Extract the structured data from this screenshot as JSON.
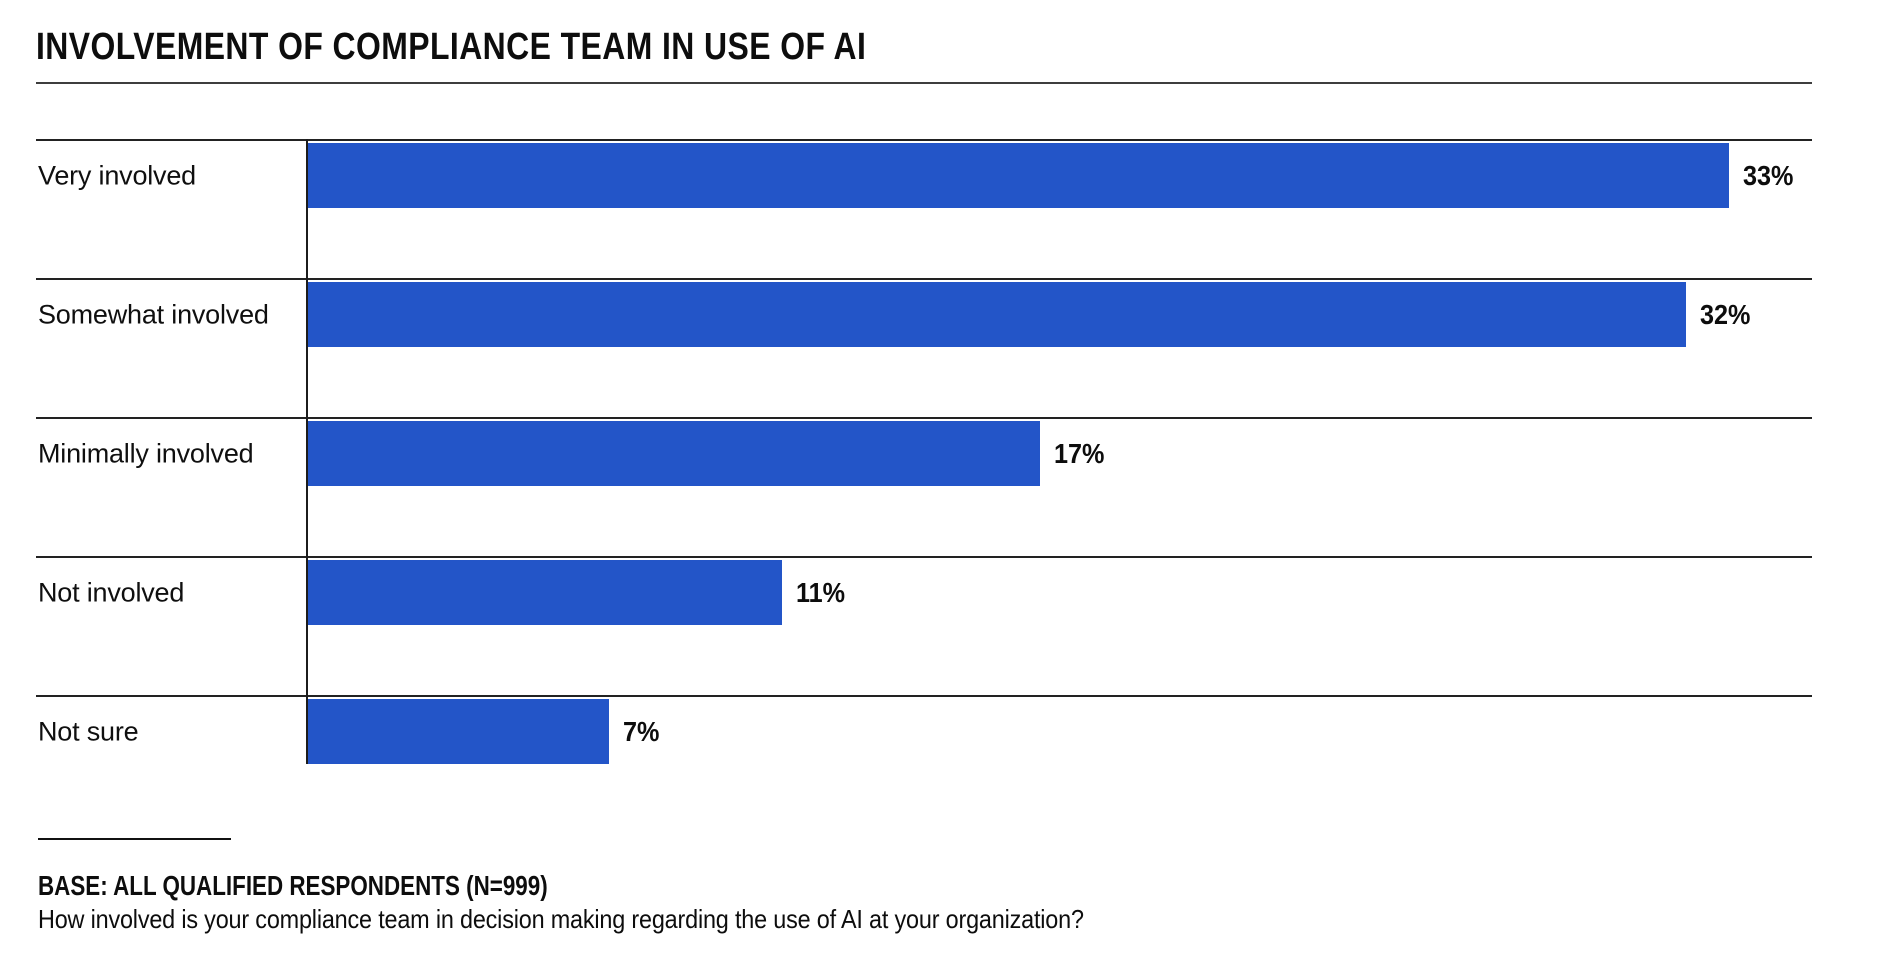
{
  "page": {
    "background": "#ffffff"
  },
  "header": {
    "title": "INVOLVEMENT OF COMPLIANCE TEAM IN USE OF AI"
  },
  "chart_data": {
    "type": "bar",
    "orientation": "horizontal",
    "title": "INVOLVEMENT OF COMPLIANCE TEAM IN USE OF AI",
    "categories": [
      "Very involved",
      "Somewhat involved",
      "Minimally involved",
      "Not involved",
      "Not sure"
    ],
    "values": [
      33,
      32,
      17,
      11,
      7
    ],
    "value_labels": [
      "33%",
      "32%",
      "17%",
      "11%",
      "7%"
    ],
    "unit": "percent",
    "xlim": [
      0,
      35
    ],
    "bar_color": "#2355C8",
    "axis_color": "#1c1c1c",
    "separator_color": "#222222",
    "grid": false,
    "legend": "none"
  },
  "footer": {
    "base_note": "BASE: ALL QUALIFIED RESPONDENTS (N=999)",
    "question": "How involved is your compliance team in decision making regarding the use of AI at your organization?"
  }
}
